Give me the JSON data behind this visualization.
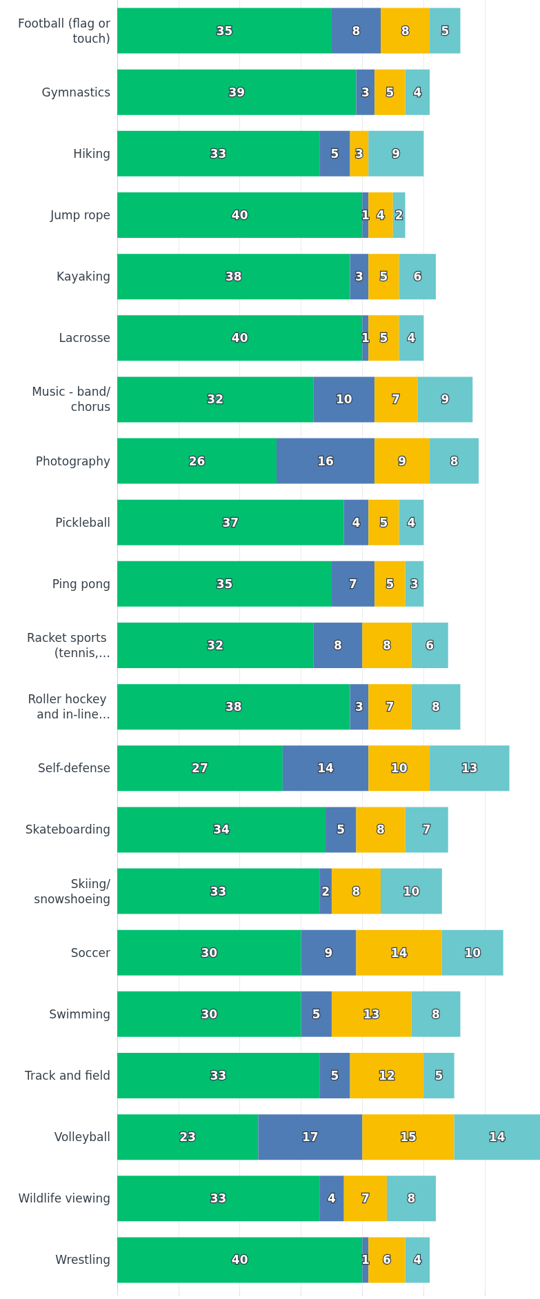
{
  "chart_data": {
    "type": "bar",
    "orientation": "horizontal",
    "stacked": true,
    "data_labels": true,
    "grid": "x",
    "tick_labels": "y",
    "categories": [
      "Football (flag or touch)",
      "Gymnastics",
      "Hiking",
      "Jump rope",
      "Kayaking",
      "Lacrosse",
      "Music - band/chorus",
      "Photography",
      "Pickleball",
      "Ping pong",
      "Racket sports (tennis,…",
      "Roller hockey and in-line…",
      "Self-defense",
      "Skateboarding",
      "Skiing/snowshoeing",
      "Soccer",
      "Swimming",
      "Track and field",
      "Volleyball",
      "Wildlife viewing",
      "Wrestling"
    ],
    "series": [
      {
        "color": "#00bf6f",
        "values": [
          35,
          39,
          33,
          40,
          38,
          40,
          32,
          26,
          37,
          35,
          32,
          38,
          27,
          34,
          33,
          30,
          30,
          33,
          23,
          33,
          40
        ]
      },
      {
        "color": "#507cb6",
        "values": [
          8,
          3,
          5,
          1,
          3,
          1,
          10,
          16,
          4,
          7,
          8,
          3,
          14,
          5,
          2,
          9,
          5,
          5,
          17,
          4,
          1
        ]
      },
      {
        "color": "#f9be00",
        "values": [
          8,
          5,
          3,
          4,
          5,
          5,
          7,
          9,
          5,
          5,
          8,
          7,
          10,
          8,
          8,
          14,
          13,
          12,
          15,
          7,
          6
        ]
      },
      {
        "color": "#6bc8cd",
        "values": [
          5,
          4,
          9,
          2,
          6,
          4,
          9,
          8,
          4,
          3,
          6,
          8,
          13,
          7,
          10,
          10,
          8,
          5,
          14,
          8,
          4
        ]
      }
    ],
    "xlim": [
      0,
      69
    ],
    "xticks": [
      {
        "value": 0,
        "label": null
      },
      {
        "value": 10,
        "label": null
      },
      {
        "value": 20,
        "label": null
      },
      {
        "value": 30,
        "label": null
      },
      {
        "value": 40,
        "label": null
      },
      {
        "value": 50,
        "label": null
      },
      {
        "value": 60,
        "label": null
      }
    ]
  }
}
